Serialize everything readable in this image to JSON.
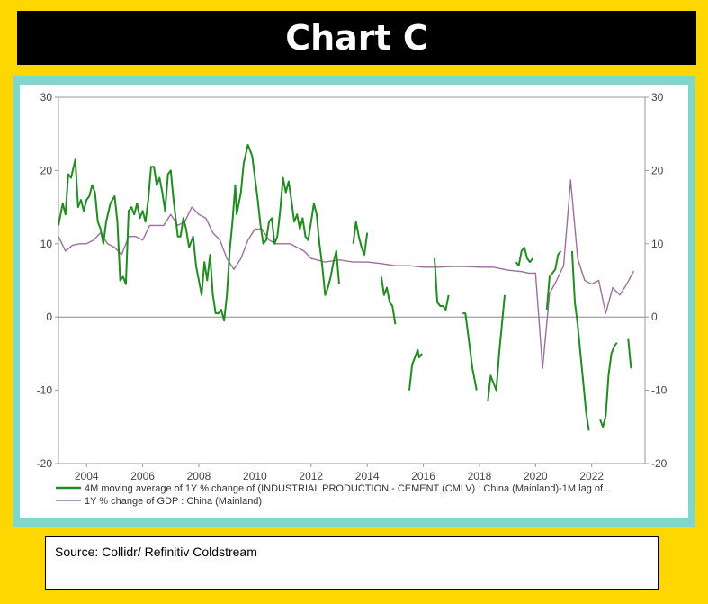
{
  "header": {
    "title": "Chart C"
  },
  "source": {
    "text": "Source:  Collidr/ Refinitiv Coldstream"
  },
  "colors": {
    "cement": "#228b22",
    "gdp": "#9a6f9e"
  },
  "chart_data": {
    "type": "line",
    "title": "Chart C",
    "ylim": [
      -20,
      30
    ],
    "xlim": [
      2003.0,
      2023.9
    ],
    "yticks": [
      -20,
      -10,
      0,
      10,
      20,
      30
    ],
    "ytick_labels": [
      "-20",
      "-10",
      "0",
      "10",
      "20",
      "30"
    ],
    "xticks": [
      2004,
      2006,
      2008,
      2010,
      2012,
      2014,
      2016,
      2018,
      2020,
      2022
    ],
    "xtick_labels": [
      "2004",
      "2006",
      "2008",
      "2010",
      "2012",
      "2014",
      "2016",
      "2018",
      "2020",
      "2022"
    ],
    "grid": true,
    "zero_line": true,
    "legend_position": "bottom-left",
    "series": [
      {
        "name": "4M moving average of 1Y % change of (INDUSTRIAL PRODUCTION - CEMENT (CMLV) : China (Mainland)-1M lag of...",
        "color": "#228b22",
        "segments": [
          [
            [
              2003.0,
              12.5
            ],
            [
              2003.15,
              15.5
            ],
            [
              2003.25,
              14
            ],
            [
              2003.35,
              19.5
            ],
            [
              2003.45,
              19
            ],
            [
              2003.6,
              21.5
            ],
            [
              2003.7,
              15
            ],
            [
              2003.8,
              16
            ],
            [
              2003.9,
              14.5
            ],
            [
              2004.0,
              16
            ],
            [
              2004.1,
              16.5
            ],
            [
              2004.2,
              18
            ],
            [
              2004.3,
              17
            ],
            [
              2004.4,
              13
            ],
            [
              2004.5,
              12
            ],
            [
              2004.6,
              10
            ],
            [
              2004.7,
              13
            ],
            [
              2004.85,
              15.5
            ],
            [
              2005.0,
              16.5
            ],
            [
              2005.1,
              13
            ],
            [
              2005.2,
              5
            ],
            [
              2005.3,
              5.5
            ],
            [
              2005.4,
              4.5
            ],
            [
              2005.5,
              14.5
            ],
            [
              2005.6,
              15
            ],
            [
              2005.7,
              14
            ],
            [
              2005.8,
              15.5
            ],
            [
              2005.9,
              13.5
            ],
            [
              2006.0,
              14.5
            ],
            [
              2006.1,
              13
            ],
            [
              2006.2,
              16
            ],
            [
              2006.3,
              20.5
            ],
            [
              2006.4,
              20.5
            ],
            [
              2006.5,
              18
            ],
            [
              2006.6,
              19
            ],
            [
              2006.7,
              17
            ],
            [
              2006.8,
              14.5
            ],
            [
              2006.9,
              19.5
            ],
            [
              2007.0,
              20
            ],
            [
              2007.1,
              16
            ],
            [
              2007.25,
              11
            ],
            [
              2007.35,
              11
            ],
            [
              2007.45,
              13.5
            ],
            [
              2007.55,
              12
            ],
            [
              2007.65,
              9.5
            ],
            [
              2007.8,
              11
            ],
            [
              2007.9,
              7
            ],
            [
              2008.0,
              5
            ],
            [
              2008.1,
              3
            ],
            [
              2008.2,
              7.5
            ],
            [
              2008.3,
              5
            ],
            [
              2008.4,
              8.5
            ],
            [
              2008.5,
              3
            ],
            [
              2008.6,
              0.5
            ],
            [
              2008.7,
              0.5
            ],
            [
              2008.8,
              1
            ],
            [
              2008.9,
              -0.5
            ],
            [
              2009.0,
              3
            ],
            [
              2009.1,
              9
            ],
            [
              2009.2,
              13
            ],
            [
              2009.3,
              18
            ],
            [
              2009.35,
              14
            ],
            [
              2009.5,
              17
            ],
            [
              2009.6,
              21
            ],
            [
              2009.75,
              23.5
            ],
            [
              2009.9,
              22
            ],
            [
              2010.1,
              16
            ],
            [
              2010.2,
              12.5
            ],
            [
              2010.3,
              10
            ],
            [
              2010.4,
              10.5
            ],
            [
              2010.5,
              13
            ],
            [
              2010.6,
              13.5
            ],
            [
              2010.7,
              10
            ],
            [
              2010.8,
              11
            ],
            [
              2010.9,
              14.5
            ],
            [
              2011.0,
              19
            ],
            [
              2011.1,
              17
            ],
            [
              2011.2,
              18.5
            ],
            [
              2011.3,
              16
            ],
            [
              2011.4,
              13
            ],
            [
              2011.5,
              14
            ],
            [
              2011.6,
              12
            ],
            [
              2011.7,
              13.5
            ],
            [
              2011.8,
              11
            ],
            [
              2011.9,
              10.5
            ],
            [
              2012.0,
              13
            ],
            [
              2012.1,
              15.5
            ],
            [
              2012.2,
              14
            ],
            [
              2012.3,
              10
            ],
            [
              2012.4,
              7
            ],
            [
              2012.5,
              3
            ],
            [
              2012.6,
              4
            ],
            [
              2012.7,
              5.5
            ],
            [
              2012.8,
              7.5
            ],
            [
              2012.9,
              9
            ],
            [
              2013.0,
              4.5
            ]
          ],
          [
            [
              2013.5,
              10
            ],
            [
              2013.6,
              13
            ],
            [
              2013.7,
              11
            ],
            [
              2013.8,
              9.5
            ],
            [
              2013.9,
              8.5
            ],
            [
              2014.0,
              11.5
            ]
          ],
          [
            [
              2014.5,
              5.5
            ],
            [
              2014.6,
              3
            ],
            [
              2014.7,
              4
            ],
            [
              2014.8,
              2
            ],
            [
              2014.9,
              1.5
            ],
            [
              2015.0,
              -1
            ]
          ],
          [
            [
              2015.5,
              -10
            ],
            [
              2015.6,
              -6.5
            ],
            [
              2015.7,
              -5.5
            ],
            [
              2015.8,
              -4.5
            ],
            [
              2015.85,
              -5.5
            ],
            [
              2015.95,
              -5
            ]
          ],
          [
            [
              2016.4,
              8
            ],
            [
              2016.5,
              2
            ],
            [
              2016.6,
              1.5
            ],
            [
              2016.7,
              1.5
            ],
            [
              2016.8,
              1
            ],
            [
              2016.9,
              3
            ]
          ],
          [
            [
              2017.4,
              0.5
            ],
            [
              2017.5,
              0.5
            ],
            [
              2017.6,
              -2.5
            ],
            [
              2017.75,
              -7
            ],
            [
              2017.9,
              -10
            ]
          ],
          [
            [
              2018.3,
              -11.5
            ],
            [
              2018.4,
              -8
            ],
            [
              2018.5,
              -9
            ],
            [
              2018.6,
              -10
            ],
            [
              2018.7,
              -5
            ],
            [
              2018.8,
              -1
            ],
            [
              2018.9,
              3
            ]
          ],
          [
            [
              2019.3,
              7.5
            ],
            [
              2019.4,
              7
            ],
            [
              2019.5,
              9
            ],
            [
              2019.6,
              9.5
            ],
            [
              2019.7,
              8
            ],
            [
              2019.8,
              7.5
            ],
            [
              2019.9,
              8
            ]
          ],
          [
            [
              2020.4,
              1
            ],
            [
              2020.5,
              5.5
            ],
            [
              2020.6,
              6
            ],
            [
              2020.7,
              6.5
            ],
            [
              2020.8,
              8.5
            ],
            [
              2020.9,
              9
            ]
          ],
          [
            [
              2021.3,
              9
            ],
            [
              2021.4,
              2
            ],
            [
              2021.5,
              -1
            ],
            [
              2021.6,
              -5
            ],
            [
              2021.7,
              -9
            ],
            [
              2021.8,
              -13
            ],
            [
              2021.9,
              -15.5
            ]
          ],
          [
            [
              2022.3,
              -14
            ],
            [
              2022.4,
              -15
            ],
            [
              2022.5,
              -13.5
            ],
            [
              2022.6,
              -8
            ],
            [
              2022.7,
              -5
            ],
            [
              2022.8,
              -4
            ],
            [
              2022.9,
              -3.5
            ]
          ],
          [
            [
              2023.3,
              -3
            ],
            [
              2023.4,
              -7
            ]
          ]
        ]
      },
      {
        "name": "1Y % change of GDP : China (Mainland)",
        "color": "#9a6f9e",
        "segments": [
          [
            [
              2003.0,
              11
            ],
            [
              2003.25,
              9
            ],
            [
              2003.5,
              9.8
            ],
            [
              2003.75,
              10
            ],
            [
              2004.0,
              10
            ],
            [
              2004.25,
              10.5
            ],
            [
              2004.5,
              11.5
            ],
            [
              2004.75,
              10
            ],
            [
              2005.0,
              9.5
            ],
            [
              2005.25,
              8.5
            ],
            [
              2005.5,
              11
            ],
            [
              2005.75,
              11
            ],
            [
              2006.0,
              10.5
            ],
            [
              2006.25,
              12.5
            ],
            [
              2006.5,
              12.5
            ],
            [
              2006.75,
              12.5
            ],
            [
              2007.0,
              14
            ],
            [
              2007.25,
              12.5
            ],
            [
              2007.5,
              13
            ],
            [
              2007.75,
              15
            ],
            [
              2008.0,
              14
            ],
            [
              2008.25,
              13.5
            ],
            [
              2008.5,
              11.5
            ],
            [
              2008.75,
              10.5
            ],
            [
              2009.0,
              8
            ],
            [
              2009.25,
              6.5
            ],
            [
              2009.5,
              8
            ],
            [
              2009.75,
              10.5
            ],
            [
              2010.0,
              12
            ],
            [
              2010.25,
              12
            ],
            [
              2010.5,
              10.5
            ],
            [
              2010.75,
              10
            ],
            [
              2011.0,
              10
            ],
            [
              2011.25,
              10
            ],
            [
              2011.5,
              9.5
            ],
            [
              2011.75,
              9
            ],
            [
              2012.0,
              8
            ],
            [
              2012.5,
              7.5
            ],
            [
              2013.0,
              7.8
            ],
            [
              2013.5,
              7.5
            ],
            [
              2014.0,
              7.5
            ],
            [
              2014.5,
              7.3
            ],
            [
              2015.0,
              7
            ],
            [
              2015.5,
              7
            ],
            [
              2016.0,
              6.8
            ],
            [
              2016.5,
              6.8
            ],
            [
              2017.0,
              6.9
            ],
            [
              2017.5,
              6.9
            ],
            [
              2018.0,
              6.8
            ],
            [
              2018.5,
              6.8
            ],
            [
              2019.0,
              6.4
            ],
            [
              2019.5,
              6.2
            ],
            [
              2019.75,
              6
            ],
            [
              2020.0,
              6
            ],
            [
              2020.25,
              -7
            ],
            [
              2020.5,
              3.2
            ],
            [
              2020.75,
              5
            ],
            [
              2021.0,
              7
            ],
            [
              2021.25,
              18.7
            ],
            [
              2021.5,
              8
            ],
            [
              2021.75,
              5
            ],
            [
              2022.0,
              4.5
            ],
            [
              2022.25,
              5
            ],
            [
              2022.5,
              0.5
            ],
            [
              2022.75,
              4
            ],
            [
              2023.0,
              3
            ],
            [
              2023.25,
              4.5
            ],
            [
              2023.5,
              6.3
            ]
          ]
        ]
      }
    ]
  }
}
